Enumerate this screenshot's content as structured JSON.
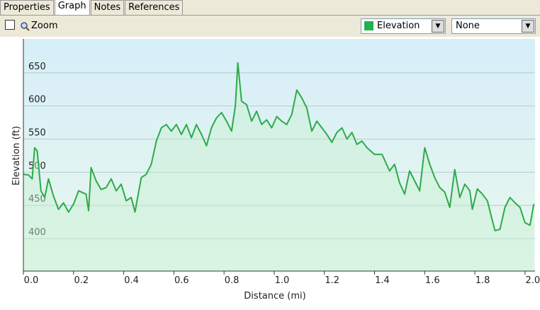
{
  "tabs": [
    "Properties",
    "Graph",
    "Notes",
    "References"
  ],
  "toolbar": {
    "zoom": "Zoom",
    "series_select": "Elevation",
    "compare_select": "None"
  },
  "chart_data": {
    "type": "line",
    "xlabel": "Distance (mi)",
    "ylabel": "Elevation (ft)",
    "color": "#2eaa4a",
    "grid": true,
    "x": [
      0.0,
      0.02,
      0.035,
      0.045,
      0.055,
      0.07,
      0.085,
      0.1,
      0.12,
      0.14,
      0.16,
      0.18,
      0.2,
      0.22,
      0.25,
      0.26,
      0.27,
      0.29,
      0.31,
      0.33,
      0.35,
      0.37,
      0.39,
      0.41,
      0.43,
      0.445,
      0.47,
      0.49,
      0.51,
      0.53,
      0.55,
      0.57,
      0.59,
      0.61,
      0.63,
      0.65,
      0.67,
      0.69,
      0.71,
      0.73,
      0.75,
      0.77,
      0.79,
      0.81,
      0.83,
      0.845,
      0.855,
      0.87,
      0.89,
      0.91,
      0.93,
      0.95,
      0.97,
      0.99,
      1.01,
      1.03,
      1.05,
      1.07,
      1.09,
      1.11,
      1.13,
      1.15,
      1.17,
      1.19,
      1.21,
      1.23,
      1.25,
      1.27,
      1.29,
      1.31,
      1.33,
      1.35,
      1.37,
      1.4,
      1.43,
      1.46,
      1.48,
      1.5,
      1.52,
      1.54,
      1.56,
      1.58,
      1.6,
      1.62,
      1.64,
      1.66,
      1.68,
      1.7,
      1.72,
      1.74,
      1.76,
      1.78,
      1.79,
      1.81,
      1.83,
      1.85,
      1.87,
      1.88,
      1.9,
      1.92,
      1.94,
      1.96,
      1.98,
      2.0,
      2.02,
      2.035
    ],
    "values": [
      497,
      496,
      490,
      537,
      532,
      472,
      462,
      490,
      464,
      444,
      454,
      440,
      452,
      472,
      467,
      442,
      507,
      487,
      474,
      477,
      490,
      472,
      482,
      457,
      462,
      440,
      492,
      497,
      512,
      547,
      567,
      572,
      562,
      572,
      557,
      572,
      552,
      572,
      557,
      540,
      567,
      582,
      590,
      577,
      562,
      600,
      665,
      607,
      602,
      577,
      592,
      572,
      579,
      567,
      584,
      577,
      572,
      587,
      624,
      612,
      597,
      562,
      577,
      567,
      557,
      545,
      560,
      567,
      550,
      560,
      542,
      547,
      537,
      527,
      527,
      502,
      512,
      484,
      467,
      502,
      487,
      472,
      537,
      512,
      492,
      477,
      470,
      447,
      504,
      462,
      482,
      472,
      444,
      475,
      467,
      457,
      427,
      412,
      414,
      447,
      462,
      454,
      447,
      424,
      420,
      452
    ],
    "xlim": [
      0,
      2.04
    ],
    "ylim": [
      351,
      701
    ],
    "xticks": [
      {
        "value": 0,
        "label": "0.0"
      },
      0.2,
      0.4,
      0.6,
      0.8,
      {
        "value": 1,
        "label": "1.0"
      },
      1.2,
      1.4,
      1.6,
      1.8,
      {
        "value": 2,
        "label": "2.0"
      }
    ],
    "yticks": [
      400,
      450,
      500,
      550,
      600,
      650
    ]
  }
}
